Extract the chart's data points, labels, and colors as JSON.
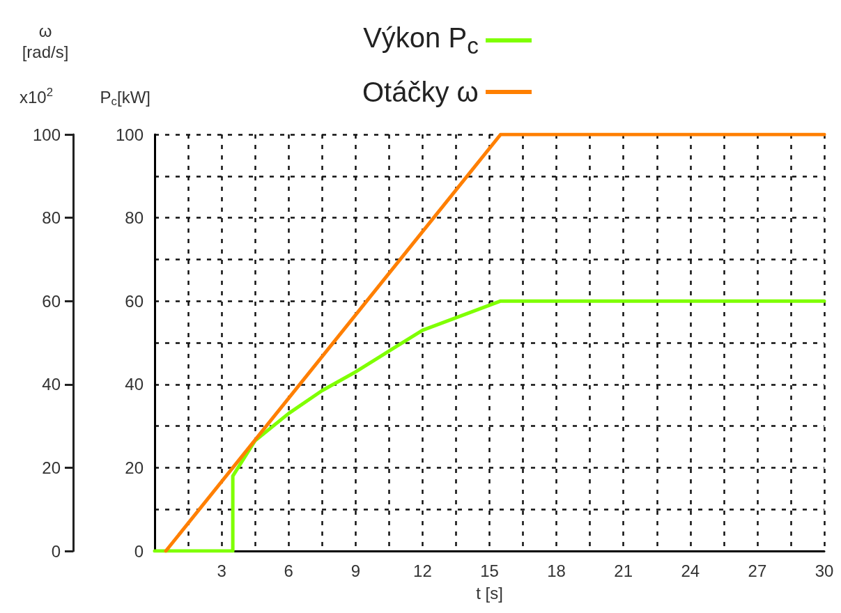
{
  "chart_data": {
    "type": "line",
    "xlabel": "t [s]",
    "ylabel": "ω\n[rad/s]",
    "y2label": "P$_{c}$[kW]",
    "annotations": [
      "x10$^{2}$"
    ],
    "series": [
      {
        "name": "Výkon P$_{c}$",
        "color": "#7fff00",
        "x": [
          0,
          3.5,
          3.5,
          4.5,
          6,
          7.5,
          9,
          10.5,
          12,
          13.5,
          15,
          15.5,
          30
        ],
        "values": [
          0,
          0,
          18,
          26.5,
          33,
          38.5,
          43,
          48,
          53,
          56,
          59,
          60,
          60
        ]
      },
      {
        "name": "Otáčky ω",
        "color": "#ff7f00",
        "x": [
          0.5,
          15.5,
          30
        ],
        "values": [
          0,
          100,
          100
        ]
      }
    ],
    "xlim": [
      0,
      30
    ],
    "xticks": [
      {
        "value": 0,
        "label": null
      },
      {
        "value": 1.5,
        "label": null
      },
      3,
      {
        "value": 4.5,
        "label": null
      },
      6,
      {
        "value": 7.5,
        "label": null
      },
      9,
      {
        "value": 10.5,
        "label": null
      },
      12,
      {
        "value": 13.5,
        "label": null
      },
      15,
      {
        "value": 16.5,
        "label": null
      },
      18,
      {
        "value": 19.5,
        "label": null
      },
      21,
      {
        "value": 22.5,
        "label": null
      },
      24,
      {
        "value": 25.5,
        "label": null
      },
      27,
      {
        "value": 28.5,
        "label": null
      },
      30
    ],
    "ylim": [
      0,
      100
    ],
    "yticks": [
      0,
      20,
      40,
      60,
      80,
      100
    ],
    "y2lim": [
      0,
      100
    ],
    "y2ticks": [
      0,
      {
        "value": 10,
        "label": null
      },
      20,
      {
        "value": 30,
        "label": null
      },
      40,
      {
        "value": 50,
        "label": null
      },
      60,
      {
        "value": 70,
        "label": null
      },
      80,
      {
        "value": 90,
        "label": null
      },
      100
    ],
    "grid": true,
    "legend": "top",
    "marker": "none",
    "line_style": "solid"
  }
}
